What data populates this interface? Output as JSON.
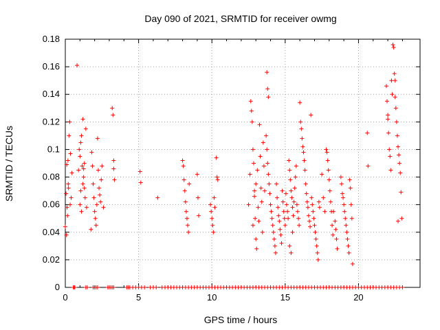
{
  "chart_data": {
    "type": "scatter",
    "title": "Day 090 of 2021, SRMTID for receiver owmg",
    "xlabel": "GPS time / hours",
    "ylabel": "SRMTID / TECUs",
    "xlim": [
      0,
      24.2
    ],
    "ylim": [
      0,
      0.18
    ],
    "x_ticks": [
      0,
      5,
      10,
      15,
      20
    ],
    "x_tick_labels": [
      "0",
      "5",
      "10",
      "15",
      "20"
    ],
    "y_ticks": [
      0,
      0.02,
      0.04,
      0.06,
      0.08,
      0.1,
      0.12,
      0.14,
      0.16,
      0.18
    ],
    "y_tick_labels": [
      "0",
      "0.02",
      "0.04",
      "0.06",
      "0.08",
      "0.1",
      "0.12",
      "0.14",
      "0.16",
      "0.18"
    ],
    "grid": true,
    "marker": "+",
    "color": "#ff0000",
    "series": [
      {
        "name": "SRMTID",
        "points": [
          [
            0.0,
            0.044
          ],
          [
            0.05,
            0.068
          ],
          [
            0.1,
            0.089
          ],
          [
            0.15,
            0.052
          ],
          [
            0.2,
            0.075
          ],
          [
            0.25,
            0.11
          ],
          [
            0.3,
            0.12
          ],
          [
            0.35,
            0.097
          ],
          [
            0.4,
            0.065
          ],
          [
            0.45,
            0.083
          ],
          [
            0.12,
            0.058
          ],
          [
            0.22,
            0.072
          ],
          [
            0.33,
            0.06
          ],
          [
            0.08,
            0.038
          ],
          [
            0.18,
            0.092
          ],
          [
            0.8,
            0.161
          ],
          [
            0.9,
            0.085
          ],
          [
            1.0,
            0.095
          ],
          [
            1.05,
            0.105
          ],
          [
            1.1,
            0.11
          ],
          [
            1.15,
            0.088
          ],
          [
            1.2,
            0.122
          ],
          [
            1.25,
            0.08
          ],
          [
            1.3,
            0.072
          ],
          [
            1.35,
            0.065
          ],
          [
            1.0,
            0.06
          ],
          [
            1.1,
            0.055
          ],
          [
            1.2,
            0.075
          ],
          [
            1.3,
            0.09
          ],
          [
            0.95,
            0.1
          ],
          [
            1.4,
            0.115
          ],
          [
            1.45,
            0.058
          ],
          [
            1.05,
            0.07
          ],
          [
            1.25,
            0.086
          ],
          [
            1.8,
            0.098
          ],
          [
            1.85,
            0.088
          ],
          [
            1.9,
            0.075
          ],
          [
            1.95,
            0.065
          ],
          [
            2.0,
            0.055
          ],
          [
            2.05,
            0.05
          ],
          [
            2.1,
            0.045
          ],
          [
            2.15,
            0.06
          ],
          [
            2.2,
            0.108
          ],
          [
            2.25,
            0.085
          ],
          [
            2.3,
            0.072
          ],
          [
            2.35,
            0.067
          ],
          [
            2.4,
            0.062
          ],
          [
            2.5,
            0.088
          ],
          [
            2.6,
            0.058
          ],
          [
            1.75,
            0.042
          ],
          [
            2.45,
            0.078
          ],
          [
            3.2,
            0.13
          ],
          [
            3.25,
            0.125
          ],
          [
            3.3,
            0.092
          ],
          [
            3.3,
            0.086
          ],
          [
            3.35,
            0.078
          ],
          [
            5.1,
            0.084
          ],
          [
            5.15,
            0.076
          ],
          [
            6.3,
            0.065
          ],
          [
            8.0,
            0.092
          ],
          [
            8.05,
            0.088
          ],
          [
            8.1,
            0.078
          ],
          [
            8.15,
            0.07
          ],
          [
            8.2,
            0.062
          ],
          [
            8.25,
            0.055
          ],
          [
            8.3,
            0.05
          ],
          [
            8.35,
            0.045
          ],
          [
            8.4,
            0.04
          ],
          [
            8.45,
            0.075
          ],
          [
            9.0,
            0.082
          ],
          [
            9.05,
            0.065
          ],
          [
            9.1,
            0.052
          ],
          [
            9.9,
            0.06
          ],
          [
            9.95,
            0.055
          ],
          [
            10.0,
            0.05
          ],
          [
            10.05,
            0.045
          ],
          [
            10.1,
            0.04
          ],
          [
            10.15,
            0.065
          ],
          [
            10.2,
            0.058
          ],
          [
            10.3,
            0.094
          ],
          [
            10.35,
            0.08
          ],
          [
            10.4,
            0.078
          ],
          [
            12.5,
            0.06
          ],
          [
            12.6,
            0.082
          ],
          [
            12.65,
            0.135
          ],
          [
            12.7,
            0.128
          ],
          [
            12.75,
            0.12
          ],
          [
            12.8,
            0.1
          ],
          [
            12.85,
            0.09
          ],
          [
            12.9,
            0.07
          ],
          [
            12.95,
            0.05
          ],
          [
            13.0,
            0.035
          ],
          [
            13.05,
            0.028
          ],
          [
            12.8,
            0.045
          ],
          [
            12.9,
            0.066
          ],
          [
            13.0,
            0.075
          ],
          [
            13.1,
            0.085
          ],
          [
            13.15,
            0.058
          ],
          [
            13.2,
            0.048
          ],
          [
            13.25,
            0.118
          ],
          [
            13.3,
            0.095
          ],
          [
            13.35,
            0.072
          ],
          [
            13.4,
            0.062
          ],
          [
            13.45,
            0.04
          ],
          [
            13.5,
            0.105
          ],
          [
            13.55,
            0.088
          ],
          [
            13.6,
            0.07
          ],
          [
            13.75,
            0.156
          ],
          [
            13.8,
            0.144
          ],
          [
            13.85,
            0.138
          ],
          [
            13.7,
            0.11
          ],
          [
            13.75,
            0.1
          ],
          [
            13.8,
            0.09
          ],
          [
            13.85,
            0.082
          ],
          [
            13.9,
            0.075
          ],
          [
            13.95,
            0.068
          ],
          [
            14.0,
            0.06
          ],
          [
            14.05,
            0.055
          ],
          [
            14.1,
            0.05
          ],
          [
            14.15,
            0.045
          ],
          [
            14.2,
            0.04
          ],
          [
            14.25,
            0.035
          ],
          [
            14.3,
            0.03
          ],
          [
            14.35,
            0.025
          ],
          [
            14.4,
            0.075
          ],
          [
            14.45,
            0.065
          ],
          [
            14.5,
            0.058
          ],
          [
            14.55,
            0.052
          ],
          [
            14.6,
            0.048
          ],
          [
            14.65,
            0.042
          ],
          [
            14.7,
            0.038
          ],
          [
            14.75,
            0.032
          ],
          [
            14.8,
            0.07
          ],
          [
            14.85,
            0.062
          ],
          [
            14.9,
            0.055
          ],
          [
            14.95,
            0.05
          ],
          [
            15.0,
            0.045
          ],
          [
            15.05,
            0.068
          ],
          [
            15.1,
            0.06
          ],
          [
            15.15,
            0.055
          ],
          [
            15.2,
            0.05
          ],
          [
            15.25,
            0.092
          ],
          [
            15.3,
            0.085
          ],
          [
            15.35,
            0.078
          ],
          [
            15.4,
            0.07
          ],
          [
            15.45,
            0.065
          ],
          [
            15.5,
            0.058
          ],
          [
            15.55,
            0.052
          ],
          [
            15.6,
            0.062
          ],
          [
            15.65,
            0.072
          ],
          [
            15.7,
            0.08
          ],
          [
            15.75,
            0.088
          ],
          [
            15.8,
            0.06
          ],
          [
            15.85,
            0.055
          ],
          [
            15.9,
            0.05
          ],
          [
            15.95,
            0.045
          ],
          [
            15.4,
            0.025
          ],
          [
            15.5,
            0.04
          ],
          [
            15.3,
            0.03
          ],
          [
            16.0,
            0.134
          ],
          [
            16.05,
            0.12
          ],
          [
            16.1,
            0.115
          ],
          [
            16.15,
            0.108
          ],
          [
            16.2,
            0.102
          ],
          [
            16.25,
            0.098
          ],
          [
            16.3,
            0.092
          ],
          [
            16.35,
            0.085
          ],
          [
            16.4,
            0.075
          ],
          [
            16.45,
            0.068
          ],
          [
            16.5,
            0.062
          ],
          [
            16.55,
            0.058
          ],
          [
            16.6,
            0.052
          ],
          [
            16.65,
            0.048
          ],
          [
            16.7,
            0.044
          ],
          [
            16.75,
            0.125
          ],
          [
            16.8,
            0.065
          ],
          [
            16.85,
            0.06
          ],
          [
            16.9,
            0.055
          ],
          [
            16.95,
            0.05
          ],
          [
            17.0,
            0.045
          ],
          [
            17.05,
            0.04
          ],
          [
            17.1,
            0.035
          ],
          [
            17.15,
            0.03
          ],
          [
            17.2,
            0.025
          ],
          [
            17.25,
            0.02
          ],
          [
            17.3,
            0.062
          ],
          [
            17.35,
            0.058
          ],
          [
            17.5,
            0.082
          ],
          [
            17.6,
            0.065
          ],
          [
            17.7,
            0.055
          ],
          [
            17.8,
            0.1
          ],
          [
            17.85,
            0.098
          ],
          [
            17.9,
            0.092
          ],
          [
            17.95,
            0.085
          ],
          [
            18.0,
            0.078
          ],
          [
            18.05,
            0.07
          ],
          [
            18.1,
            0.062
          ],
          [
            18.15,
            0.055
          ],
          [
            18.2,
            0.045
          ],
          [
            18.25,
            0.038
          ],
          [
            18.3,
            0.055
          ],
          [
            18.4,
            0.048
          ],
          [
            18.45,
            0.042
          ],
          [
            18.5,
            0.035
          ],
          [
            18.55,
            0.028
          ],
          [
            18.8,
            0.08
          ],
          [
            18.85,
            0.075
          ],
          [
            18.9,
            0.068
          ],
          [
            18.95,
            0.065
          ],
          [
            19.0,
            0.06
          ],
          [
            19.05,
            0.055
          ],
          [
            19.1,
            0.05
          ],
          [
            19.15,
            0.045
          ],
          [
            19.2,
            0.04
          ],
          [
            19.25,
            0.035
          ],
          [
            19.3,
            0.03
          ],
          [
            19.35,
            0.025
          ],
          [
            19.4,
            0.078
          ],
          [
            19.45,
            0.072
          ],
          [
            19.5,
            0.06
          ],
          [
            19.55,
            0.05
          ],
          [
            19.6,
            0.017
          ],
          [
            20.6,
            0.112
          ],
          [
            20.65,
            0.088
          ],
          [
            21.9,
            0.146
          ],
          [
            21.95,
            0.135
          ],
          [
            22.0,
            0.122
          ],
          [
            22.05,
            0.112
          ],
          [
            22.1,
            0.1
          ],
          [
            22.15,
            0.095
          ],
          [
            22.2,
            0.085
          ],
          [
            22.25,
            0.15
          ],
          [
            22.3,
            0.14
          ],
          [
            22.35,
            0.176
          ],
          [
            22.4,
            0.174
          ],
          [
            22.45,
            0.155
          ],
          [
            22.5,
            0.15
          ],
          [
            22.55,
            0.13
          ],
          [
            22.6,
            0.12
          ],
          [
            22.65,
            0.11
          ],
          [
            22.7,
            0.102
          ],
          [
            22.75,
            0.096
          ],
          [
            22.8,
            0.09
          ],
          [
            22.85,
            0.083
          ],
          [
            22.9,
            0.069
          ],
          [
            22.95,
            0.05
          ],
          [
            22.7,
            0.048
          ],
          [
            22.5,
            0.138
          ],
          [
            22.0,
            0.125
          ]
        ],
        "zero_points": [
          0.55,
          0.6,
          0.65,
          1.4,
          1.5,
          1.9,
          2.0,
          2.1,
          2.2,
          2.9,
          3.0,
          3.1,
          3.2,
          3.3,
          4.2,
          4.3,
          4.4,
          4.6,
          4.8,
          5.0,
          5.2,
          5.4,
          5.8,
          6.0,
          6.2,
          6.6,
          6.8,
          7.0,
          7.2,
          7.4,
          7.6,
          7.8,
          8.0,
          8.2,
          8.4,
          8.6,
          8.8,
          9.0,
          9.2,
          9.4,
          9.6,
          9.8,
          10.0,
          10.2,
          10.4,
          10.6,
          10.8,
          11.0,
          11.2,
          11.4,
          11.6,
          11.8,
          12.0,
          12.2,
          12.4,
          12.6,
          12.8,
          13.0,
          13.2,
          13.4,
          13.6,
          13.8,
          14.0,
          14.2,
          14.4,
          14.6,
          14.8,
          15.0,
          15.2,
          15.4,
          15.6,
          15.8,
          16.0,
          16.2,
          16.4,
          16.6,
          16.8,
          17.0,
          17.2,
          17.4,
          17.6,
          17.8,
          18.0,
          18.2,
          18.4,
          18.6,
          18.8,
          19.0,
          19.2,
          19.4,
          19.6,
          19.8,
          20.0,
          20.2,
          20.4,
          20.6,
          20.8,
          21.0,
          21.2,
          21.4,
          21.6,
          21.8,
          22.0,
          22.2,
          22.4,
          22.6,
          22.8,
          23.0
        ]
      }
    ]
  }
}
